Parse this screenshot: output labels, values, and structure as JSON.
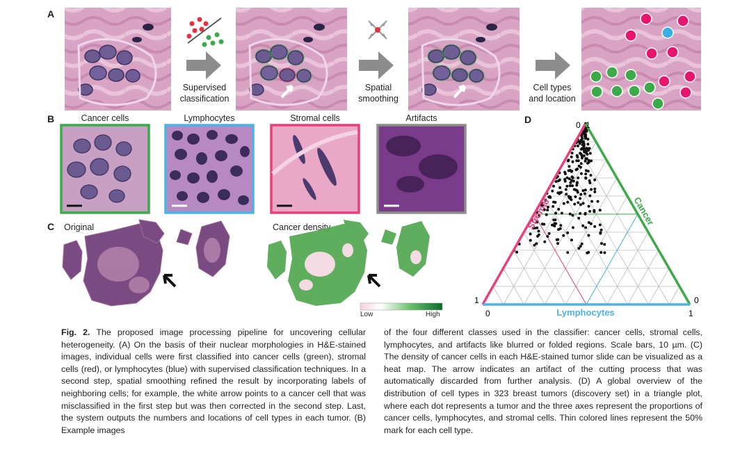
{
  "panel_a": {
    "letter": "A",
    "steps": [
      "Supervised\nclassification",
      "Spatial\nsmoothing",
      "Cell types\nand location"
    ]
  },
  "panel_b": {
    "letter": "B",
    "classes": [
      {
        "name": "Cancer cells",
        "color": "#3aab48"
      },
      {
        "name": "Lymphocytes",
        "color": "#4cb3e6"
      },
      {
        "name": "Stromal cells",
        "color": "#e8407d"
      },
      {
        "name": "Artifacts",
        "color": "#8c8c8c"
      }
    ]
  },
  "panel_c": {
    "letter": "C",
    "left_title": "Original",
    "right_title": "Cancer density",
    "colorbar_low": "Low",
    "colorbar_high": "High"
  },
  "panel_d": {
    "letter": "D",
    "corner_top_left": "0",
    "corner_top_right": "1",
    "corner_left": "1",
    "corner_left_bottom": "0",
    "corner_right_bottom": "1",
    "corner_right": "0",
    "axis_stromal": "Stromal",
    "axis_cancer": "Cancer",
    "axis_lymph": "Lymphocytes",
    "colors": {
      "stromal": "#e8407d",
      "cancer": "#3aab48",
      "lymph": "#4cb3e6"
    }
  },
  "caption": {
    "fig_label": "Fig. 2.",
    "left_text": " The proposed image processing pipeline for uncovering cellular heterogeneity. (A) On the basis of their nuclear morphologies in H&E-stained images, individual cells were first classified into cancer cells (green), stromal cells (red), or lymphocytes (blue) with supervised classification techniques. In a second step, spatial smoothing refined the result by incorporating labels of neighboring cells; for example, the white arrow points to a cancer cell that was misclassified in the first step but was then corrected in the second step. Last, the system outputs the numbers and locations of cell types in each tumor. (B) Example images",
    "right_text": "of the four different classes used in the classifier: cancer cells, stromal cells, lymphocytes, and artifacts like blurred or folded regions. Scale bars, 10 µm. (C) The density of cancer cells in each H&E-stained tumor slide can be visualized as a heat map. The arrow indicates an artifact of the cutting process that was automatically discarded from further analysis. (D) A global overview of the distribution of cell types in 323 breast tumors (discovery set) in a triangle plot, where each dot represents a tumor and the three axes represent the proportions of cancer cells, lymphocytes, and stromal cells. Thin colored lines represent the 50% mark for each cell type."
  }
}
